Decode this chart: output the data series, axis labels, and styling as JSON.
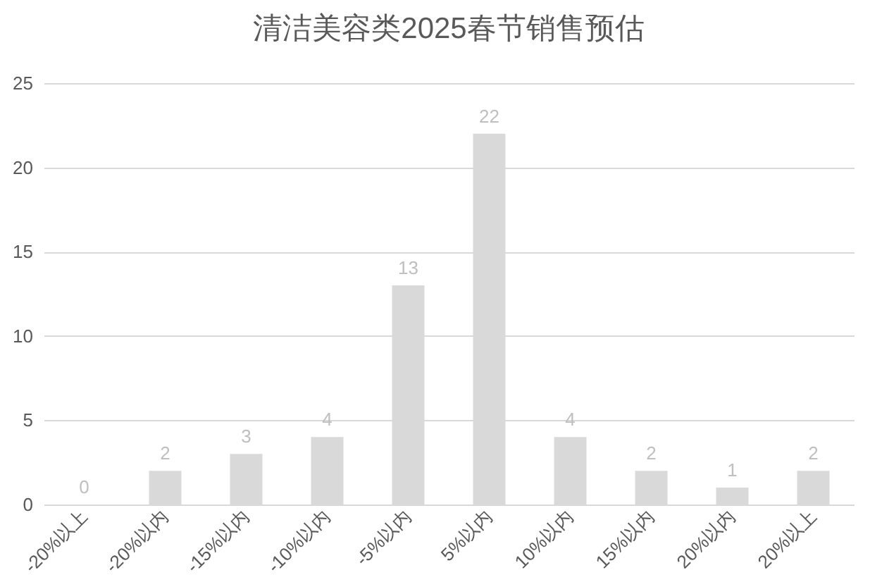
{
  "chart_data": {
    "type": "bar",
    "title": "清洁美容类2025春节销售预估",
    "categories": [
      "-20%以上",
      "-20%以内",
      "-15%以内",
      "-10%以内",
      "-5%以内",
      "5%以内",
      "10%以内",
      "15%以内",
      "20%以内",
      "20%以上"
    ],
    "values": [
      0,
      2,
      3,
      4,
      13,
      22,
      4,
      2,
      1,
      2
    ],
    "color": "#d9d9d9",
    "ylim": [
      0,
      25
    ],
    "yticks": [
      0,
      5,
      10,
      15,
      20,
      25
    ],
    "grid": "y",
    "data_labels": true
  }
}
